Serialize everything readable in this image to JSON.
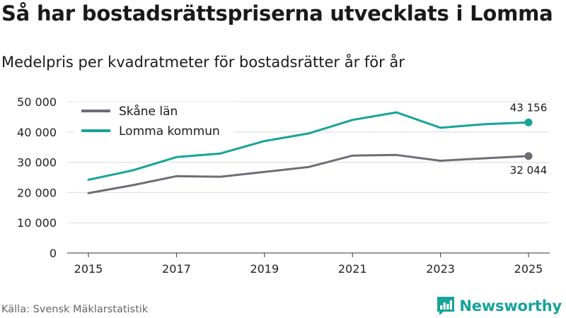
{
  "title": "Så har bostadsrättspriserna utvecklats i Lomma",
  "subtitle": "Medelpris per kvadratmeter för bostadsrätter år för år",
  "source": "Källa: Svensk Mäklarstatistik",
  "brand": {
    "name": "Newsworthy",
    "icon": "newsworthy-bar-chart-icon",
    "color": "#16a39a"
  },
  "chart_data": {
    "type": "line",
    "title": "Så har bostadsrättspriserna utvecklats i Lomma",
    "subtitle": "Medelpris per kvadratmeter för bostadsrätter år för år",
    "xlabel": "",
    "ylabel": "",
    "x": [
      2015,
      2016,
      2017,
      2018,
      2019,
      2020,
      2021,
      2022,
      2023,
      2024,
      2025
    ],
    "xlim": [
      2015,
      2025
    ],
    "xticks": [
      2015,
      2017,
      2019,
      2021,
      2023,
      2025
    ],
    "xtick_labels": [
      "2015",
      "2017",
      "2019",
      "2021",
      "2023",
      "2025"
    ],
    "ylim": [
      0,
      50000
    ],
    "yticks": [
      0,
      10000,
      20000,
      30000,
      40000,
      50000
    ],
    "ytick_labels": [
      "0",
      "10 000",
      "20 000",
      "30 000",
      "40 000",
      "50 000"
    ],
    "grid": true,
    "legend_position": "top-left",
    "series": [
      {
        "name": "Skåne län",
        "color": "#6e6d75",
        "values": [
          19800,
          22400,
          25400,
          25200,
          26800,
          28400,
          32200,
          32400,
          30500,
          31300,
          32044
        ],
        "end_label": "32 044"
      },
      {
        "name": "Lomma kommun",
        "color": "#16a39a",
        "values": [
          24200,
          27300,
          31700,
          32900,
          37000,
          39500,
          44000,
          46500,
          41400,
          42600,
          43156
        ],
        "end_label": "43 156"
      }
    ]
  }
}
